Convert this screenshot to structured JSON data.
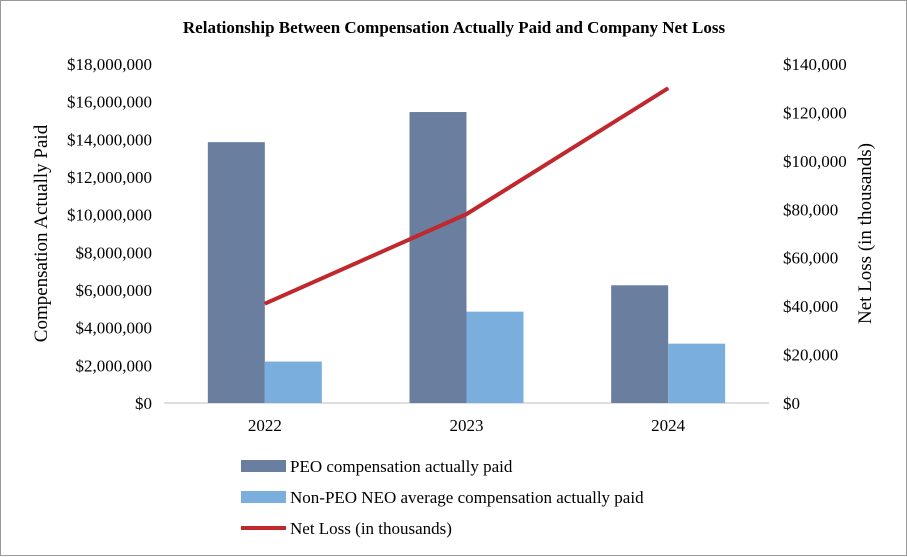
{
  "chart_data": {
    "type": "bar+line",
    "title": "Relationship Between Compensation Actually Paid and Company Net Loss",
    "categories": [
      "2022",
      "2023",
      "2024"
    ],
    "y_left": {
      "label": "Compensation Actually Paid",
      "range": [
        0,
        18000000
      ],
      "ticks": [
        0,
        2000000,
        4000000,
        6000000,
        8000000,
        10000000,
        12000000,
        14000000,
        16000000,
        18000000
      ],
      "tick_labels": [
        "$0",
        "$2,000,000",
        "$4,000,000",
        "$6,000,000",
        "$8,000,000",
        "$10,000,000",
        "$12,000,000",
        "$14,000,000",
        "$16,000,000",
        "$18,000,000"
      ]
    },
    "y_right": {
      "label": "Net Loss (in thousands)",
      "range": [
        0,
        140000
      ],
      "ticks": [
        0,
        20000,
        40000,
        60000,
        80000,
        100000,
        120000,
        140000
      ],
      "tick_labels": [
        "$0",
        "$20,000",
        "$40,000",
        "$60,000",
        "$80,000",
        "$100,000",
        "$120,000",
        "$140,000"
      ]
    },
    "series": [
      {
        "name": "PEO compensation actually paid",
        "type": "bar",
        "axis": "left",
        "color": "#6a7f9f",
        "values": [
          13850000,
          15450000,
          6250000
        ]
      },
      {
        "name": "Non-PEO NEO average compensation actually paid",
        "type": "bar",
        "axis": "left",
        "color": "#7aaedc",
        "values": [
          2200000,
          4850000,
          3150000
        ]
      },
      {
        "name": "Net Loss (in thousands)",
        "type": "line",
        "axis": "right",
        "color": "#c0282d",
        "values": [
          41000,
          78000,
          130000
        ]
      }
    ],
    "gridlines": false,
    "legend_position": "bottom"
  }
}
